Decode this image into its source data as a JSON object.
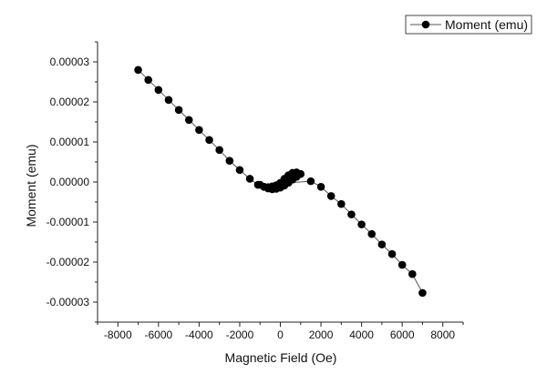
{
  "chart_data": {
    "type": "scatter",
    "xlabel": "Magnetic Field (Oe)",
    "ylabel": "Moment (emu)",
    "xlim": [
      -9000,
      9000
    ],
    "ylim": [
      -3.5e-05,
      3.5e-05
    ],
    "x_ticks": [
      -8000,
      -6000,
      -4000,
      -2000,
      0,
      2000,
      4000,
      6000,
      8000
    ],
    "x_tick_labels": [
      "-8000",
      "-6000",
      "-4000",
      "-2000",
      "0",
      "2000",
      "4000",
      "6000",
      "8000"
    ],
    "y_ticks": [
      3e-05,
      2e-05,
      1e-05,
      0.0,
      -1e-05,
      -2e-05,
      -3e-05
    ],
    "y_tick_labels": [
      "0.00003",
      "0.00002",
      "0.00001",
      "0.00000",
      "-0.00001",
      "-0.00002",
      "-0.00003"
    ],
    "legend": {
      "label": "Moment (emu)",
      "position": "top-right"
    },
    "grid": false,
    "marker_color": "#000000",
    "line_color": "#555555",
    "series": [
      {
        "name": "Moment (emu)",
        "x": [
          -7000,
          -6500,
          -6000,
          -5500,
          -5000,
          -4500,
          -4000,
          -3500,
          -3000,
          -2500,
          -2000,
          -1500,
          -1100,
          -800,
          -600,
          -400,
          -200,
          0,
          200,
          400,
          600,
          800,
          1000,
          800,
          600,
          400,
          200,
          0,
          -200,
          -400,
          -600,
          -800,
          -1000,
          1500,
          2000,
          2500,
          3000,
          3500,
          4000,
          4500,
          5000,
          5500,
          6000,
          6500,
          7000
        ],
        "y": [
          2.8e-05,
          2.55e-05,
          2.3e-05,
          2.05e-05,
          1.8e-05,
          1.55e-05,
          1.3e-05,
          1.05e-05,
          8e-06,
          5.3e-06,
          3e-06,
          8e-07,
          -7e-07,
          -1.2e-06,
          -1.3e-06,
          -1.1e-06,
          -8e-07,
          -2e-07,
          8e-07,
          1.7e-06,
          2.3e-06,
          2.4e-06,
          2e-06,
          1.3e-06,
          6e-07,
          -2e-07,
          -9e-07,
          -1.4e-06,
          -1.7e-06,
          -1.8e-06,
          -1.6e-06,
          -1.2e-06,
          -7e-07,
          2e-07,
          -1.2e-06,
          -3.5e-06,
          -5.5e-06,
          -8.1e-06,
          -1.06e-05,
          -1.3e-05,
          -1.56e-05,
          -1.8e-05,
          -2.07e-05,
          -2.3e-05,
          -2.77e-05
        ]
      }
    ]
  }
}
